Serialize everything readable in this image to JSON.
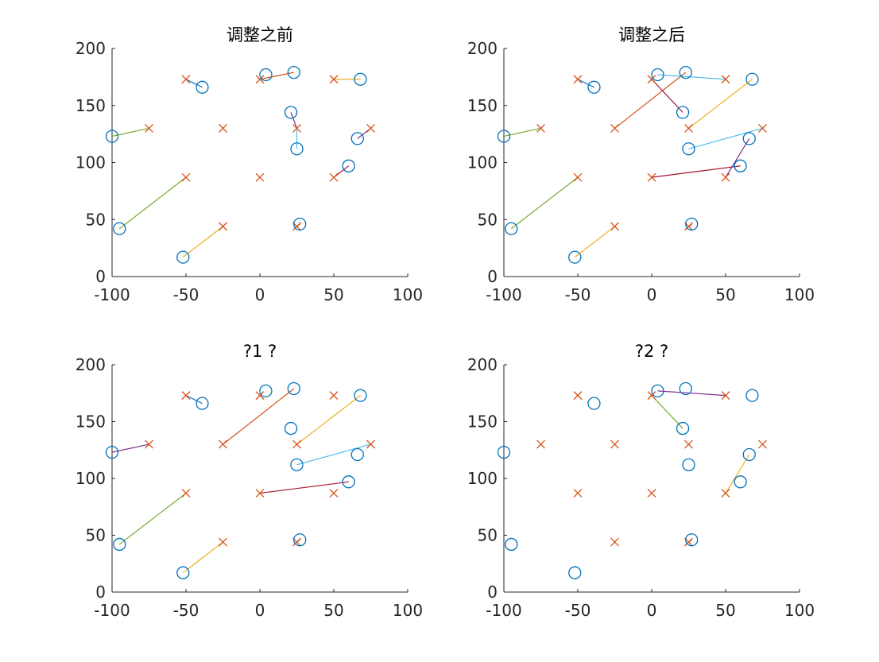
{
  "chart_data": [
    {
      "type": "scatter",
      "title": "调整之前",
      "xlabel": "",
      "ylabel": "",
      "xlim": [
        -100,
        100
      ],
      "ylim": [
        0,
        200
      ],
      "xticks": [
        -100,
        -50,
        0,
        50,
        100
      ],
      "yticks": [
        0,
        50,
        100,
        150,
        200
      ],
      "grid": false,
      "markers": {
        "circles": [
          [
            -100,
            123
          ],
          [
            -95,
            42
          ],
          [
            -52,
            17
          ],
          [
            -39,
            166
          ],
          [
            4,
            177
          ],
          [
            21,
            144
          ],
          [
            23,
            179
          ],
          [
            25,
            112
          ],
          [
            27,
            46
          ],
          [
            60,
            97
          ],
          [
            66,
            121
          ],
          [
            68,
            173
          ]
        ],
        "crosses": [
          [
            -75,
            130
          ],
          [
            -50,
            173
          ],
          [
            -50,
            87
          ],
          [
            -25,
            130
          ],
          [
            -25,
            44
          ],
          [
            0,
            173
          ],
          [
            0,
            87
          ],
          [
            25,
            130
          ],
          [
            25,
            44
          ],
          [
            50,
            173
          ],
          [
            50,
            87
          ],
          [
            75,
            130
          ]
        ]
      },
      "links": [
        {
          "from": [
            -100,
            123
          ],
          "to": [
            -75,
            130
          ],
          "color": "#77AC30"
        },
        {
          "from": [
            -95,
            42
          ],
          "to": [
            -50,
            87
          ],
          "color": "#77AC30"
        },
        {
          "from": [
            -52,
            17
          ],
          "to": [
            -25,
            44
          ],
          "color": "#EDB120"
        },
        {
          "from": [
            -39,
            166
          ],
          "to": [
            -50,
            173
          ],
          "color": "#0072BD"
        },
        {
          "from": [
            0,
            173
          ],
          "to": [
            23,
            179
          ],
          "color": "#D95319"
        },
        {
          "from": [
            21,
            144
          ],
          "to": [
            25,
            130
          ],
          "color": "#7E2F8E"
        },
        {
          "from": [
            25,
            112
          ],
          "to": [
            25,
            130
          ],
          "color": "#4DBEEE"
        },
        {
          "from": [
            27,
            46
          ],
          "to": [
            25,
            44
          ],
          "color": "#A2142F"
        },
        {
          "from": [
            50,
            87
          ],
          "to": [
            60,
            97
          ],
          "color": "#A2142F"
        },
        {
          "from": [
            66,
            121
          ],
          "to": [
            75,
            130
          ],
          "color": "#7E2F8E"
        },
        {
          "from": [
            50,
            173
          ],
          "to": [
            68,
            173
          ],
          "color": "#EDB120"
        }
      ]
    },
    {
      "type": "scatter",
      "title": "调整之后",
      "xlabel": "",
      "ylabel": "",
      "xlim": [
        -100,
        100
      ],
      "ylim": [
        0,
        200
      ],
      "xticks": [
        -100,
        -50,
        0,
        50,
        100
      ],
      "yticks": [
        0,
        50,
        100,
        150,
        200
      ],
      "grid": false,
      "markers": {
        "circles": [
          [
            -100,
            123
          ],
          [
            -95,
            42
          ],
          [
            -52,
            17
          ],
          [
            -39,
            166
          ],
          [
            4,
            177
          ],
          [
            21,
            144
          ],
          [
            23,
            179
          ],
          [
            25,
            112
          ],
          [
            27,
            46
          ],
          [
            60,
            97
          ],
          [
            66,
            121
          ],
          [
            68,
            173
          ]
        ],
        "crosses": [
          [
            -75,
            130
          ],
          [
            -50,
            173
          ],
          [
            -50,
            87
          ],
          [
            -25,
            130
          ],
          [
            -25,
            44
          ],
          [
            0,
            173
          ],
          [
            0,
            87
          ],
          [
            25,
            130
          ],
          [
            25,
            44
          ],
          [
            50,
            173
          ],
          [
            50,
            87
          ],
          [
            75,
            130
          ]
        ]
      },
      "links": [
        {
          "from": [
            -100,
            123
          ],
          "to": [
            -75,
            130
          ],
          "color": "#77AC30"
        },
        {
          "from": [
            -95,
            42
          ],
          "to": [
            -50,
            87
          ],
          "color": "#77AC30"
        },
        {
          "from": [
            -52,
            17
          ],
          "to": [
            -25,
            44
          ],
          "color": "#EDB120"
        },
        {
          "from": [
            -39,
            166
          ],
          "to": [
            -50,
            173
          ],
          "color": "#0072BD"
        },
        {
          "from": [
            -25,
            130
          ],
          "to": [
            23,
            179
          ],
          "color": "#D95319"
        },
        {
          "from": [
            0,
            173
          ],
          "to": [
            21,
            144
          ],
          "color": "#A2142F"
        },
        {
          "from": [
            4,
            177
          ],
          "to": [
            50,
            173
          ],
          "color": "#4DBEEE"
        },
        {
          "from": [
            25,
            130
          ],
          "to": [
            68,
            173
          ],
          "color": "#EDB120"
        },
        {
          "from": [
            25,
            112
          ],
          "to": [
            75,
            130
          ],
          "color": "#4DBEEE"
        },
        {
          "from": [
            0,
            87
          ],
          "to": [
            60,
            97
          ],
          "color": "#A2142F"
        },
        {
          "from": [
            50,
            87
          ],
          "to": [
            66,
            121
          ],
          "color": "#7E2F8E"
        },
        {
          "from": [
            27,
            46
          ],
          "to": [
            25,
            44
          ],
          "color": "#A2142F"
        }
      ]
    },
    {
      "type": "scatter",
      "title": "?1 ?",
      "xlabel": "",
      "ylabel": "",
      "xlim": [
        -100,
        100
      ],
      "ylim": [
        0,
        200
      ],
      "xticks": [
        -100,
        -50,
        0,
        50,
        100
      ],
      "yticks": [
        0,
        50,
        100,
        150,
        200
      ],
      "grid": false,
      "markers": {
        "circles": [
          [
            -100,
            123
          ],
          [
            -95,
            42
          ],
          [
            -52,
            17
          ],
          [
            -39,
            166
          ],
          [
            4,
            177
          ],
          [
            21,
            144
          ],
          [
            23,
            179
          ],
          [
            25,
            112
          ],
          [
            27,
            46
          ],
          [
            60,
            97
          ],
          [
            66,
            121
          ],
          [
            68,
            173
          ]
        ],
        "crosses": [
          [
            -75,
            130
          ],
          [
            -50,
            173
          ],
          [
            -50,
            87
          ],
          [
            -25,
            130
          ],
          [
            -25,
            44
          ],
          [
            0,
            173
          ],
          [
            0,
            87
          ],
          [
            25,
            130
          ],
          [
            25,
            44
          ],
          [
            50,
            173
          ],
          [
            50,
            87
          ],
          [
            75,
            130
          ]
        ]
      },
      "links": [
        {
          "from": [
            -100,
            123
          ],
          "to": [
            -75,
            130
          ],
          "color": "#7E2F8E"
        },
        {
          "from": [
            -95,
            42
          ],
          "to": [
            -50,
            87
          ],
          "color": "#77AC30"
        },
        {
          "from": [
            -52,
            17
          ],
          "to": [
            -25,
            44
          ],
          "color": "#EDB120"
        },
        {
          "from": [
            -39,
            166
          ],
          "to": [
            -50,
            173
          ],
          "color": "#0072BD"
        },
        {
          "from": [
            -25,
            130
          ],
          "to": [
            23,
            179
          ],
          "color": "#D95319"
        },
        {
          "from": [
            25,
            130
          ],
          "to": [
            68,
            173
          ],
          "color": "#EDB120"
        },
        {
          "from": [
            25,
            112
          ],
          "to": [
            75,
            130
          ],
          "color": "#4DBEEE"
        },
        {
          "from": [
            0,
            87
          ],
          "to": [
            60,
            97
          ],
          "color": "#A2142F"
        },
        {
          "from": [
            27,
            46
          ],
          "to": [
            25,
            44
          ],
          "color": "#A2142F"
        }
      ]
    },
    {
      "type": "scatter",
      "title": "?2 ?",
      "xlabel": "",
      "ylabel": "",
      "xlim": [
        -100,
        100
      ],
      "ylim": [
        0,
        200
      ],
      "xticks": [
        -100,
        -50,
        0,
        50,
        100
      ],
      "yticks": [
        0,
        50,
        100,
        150,
        200
      ],
      "grid": false,
      "markers": {
        "circles": [
          [
            -100,
            123
          ],
          [
            -95,
            42
          ],
          [
            -52,
            17
          ],
          [
            -39,
            166
          ],
          [
            4,
            177
          ],
          [
            21,
            144
          ],
          [
            23,
            179
          ],
          [
            25,
            112
          ],
          [
            27,
            46
          ],
          [
            60,
            97
          ],
          [
            66,
            121
          ],
          [
            68,
            173
          ]
        ],
        "crosses": [
          [
            -75,
            130
          ],
          [
            -50,
            173
          ],
          [
            -50,
            87
          ],
          [
            -25,
            130
          ],
          [
            -25,
            44
          ],
          [
            0,
            173
          ],
          [
            0,
            87
          ],
          [
            25,
            130
          ],
          [
            25,
            44
          ],
          [
            50,
            173
          ],
          [
            50,
            87
          ],
          [
            75,
            130
          ]
        ]
      },
      "links": [
        {
          "from": [
            0,
            173
          ],
          "to": [
            21,
            144
          ],
          "color": "#77AC30"
        },
        {
          "from": [
            4,
            177
          ],
          "to": [
            50,
            173
          ],
          "color": "#7E2F8E"
        },
        {
          "from": [
            50,
            87
          ],
          "to": [
            66,
            121
          ],
          "color": "#EDB120"
        },
        {
          "from": [
            27,
            46
          ],
          "to": [
            25,
            44
          ],
          "color": "#A2142F"
        }
      ]
    }
  ],
  "colors": {
    "circle": "#0072BD",
    "cross": "#D95319",
    "axis": "#262626"
  }
}
